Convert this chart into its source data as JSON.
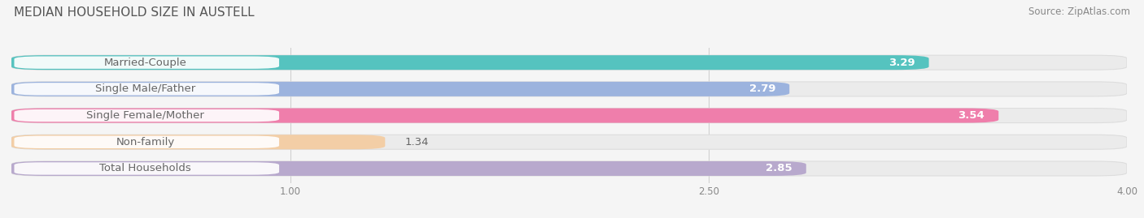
{
  "title": "MEDIAN HOUSEHOLD SIZE IN AUSTELL",
  "source": "Source: ZipAtlas.com",
  "categories": [
    "Married-Couple",
    "Single Male/Father",
    "Single Female/Mother",
    "Non-family",
    "Total Households"
  ],
  "values": [
    3.29,
    2.79,
    3.54,
    1.34,
    2.85
  ],
  "bar_colors": [
    "#3bbcb8",
    "#8eaadc",
    "#f06ba0",
    "#f5c99a",
    "#b09ec8"
  ],
  "label_text_color": "#666666",
  "value_text_color_inside": "#ffffff",
  "value_text_color_outside": "#666666",
  "xmin": 0.0,
  "xmax": 4.0,
  "xticks": [
    1.0,
    2.5,
    4.0
  ],
  "label_fontsize": 9.5,
  "value_fontsize": 9.5,
  "title_fontsize": 11,
  "source_fontsize": 8.5,
  "bar_height": 0.55,
  "bar_gap": 0.45,
  "background_color": "#f5f5f5",
  "bar_bg_color": "#ebebeb",
  "label_box_color": "white"
}
